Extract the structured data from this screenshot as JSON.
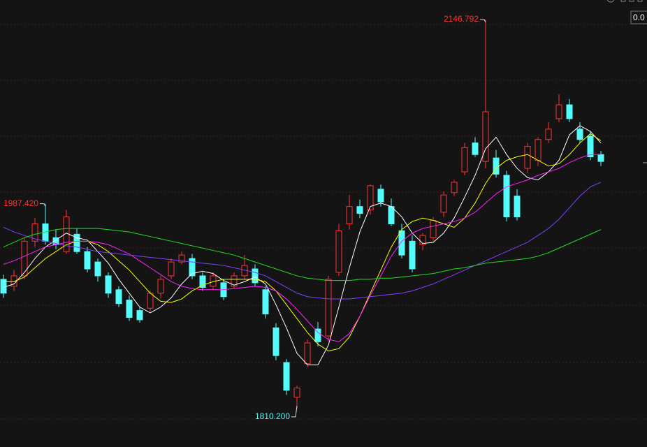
{
  "chart_data": {
    "type": "candlestick",
    "ylim": [
      1776.9,
      2163.7
    ],
    "up_color": "#ff3232",
    "down_color": "#54fcfc",
    "corner_label": "0.0",
    "candles": [
      [
        1922,
        1926,
        1906,
        1910
      ],
      [
        1916,
        1930,
        1912,
        1925
      ],
      [
        1925,
        1958,
        1922,
        1955
      ],
      [
        1955,
        1975,
        1950,
        1970
      ],
      [
        1970,
        1987.42,
        1952,
        1955
      ],
      [
        1958,
        1965,
        1948,
        1952
      ],
      [
        1946,
        1982,
        1944,
        1976
      ],
      [
        1961,
        1966,
        1944,
        1946
      ],
      [
        1946,
        1950,
        1928,
        1931
      ],
      [
        1937,
        1940,
        1920,
        1925
      ],
      [
        1925,
        1928,
        1906,
        1910
      ],
      [
        1913,
        1916,
        1898,
        1901
      ],
      [
        1904,
        1908,
        1886,
        1889
      ],
      [
        1895,
        1898,
        1884.5,
        1887
      ],
      [
        1897,
        1912,
        1894,
        1910
      ],
      [
        1910,
        1925,
        1906,
        1922
      ],
      [
        1925,
        1940,
        1922,
        1937
      ],
      [
        1937,
        1946,
        1935,
        1943
      ],
      [
        1940,
        1944,
        1922,
        1925
      ],
      [
        1925,
        1928,
        1912,
        1915
      ],
      [
        1916,
        1928,
        1913,
        1925
      ],
      [
        1919,
        1922,
        1904,
        1907
      ],
      [
        1916,
        1928,
        1914,
        1925
      ],
      [
        1925,
        1943,
        1922,
        1934
      ],
      [
        1931,
        1935,
        1916,
        1919
      ],
      [
        1913,
        1916,
        1888,
        1892
      ],
      [
        1880,
        1884,
        1852,
        1856
      ],
      [
        1850,
        1853,
        1822,
        1826
      ],
      [
        1820,
        1830,
        1810.2,
        1828
      ],
      [
        1849,
        1870,
        1846,
        1867
      ],
      [
        1879,
        1885,
        1864,
        1868
      ],
      [
        1873,
        1925,
        1868,
        1922
      ],
      [
        1928,
        1970,
        1925,
        1964
      ],
      [
        1970,
        1995,
        1965,
        1985
      ],
      [
        1985,
        1991,
        1975,
        1979
      ],
      [
        1982,
        2004,
        1978,
        2003
      ],
      [
        2000,
        2004,
        1985,
        1989
      ],
      [
        1985,
        1992,
        1968,
        1970
      ],
      [
        1964,
        1970,
        1940,
        1943
      ],
      [
        1955,
        1960,
        1928,
        1931
      ],
      [
        1952,
        1962,
        1947,
        1960
      ],
      [
        1958,
        1976,
        1955,
        1973
      ],
      [
        1980,
        1998,
        1976,
        1995
      ],
      [
        1997,
        2008,
        1994,
        2006
      ],
      [
        2015,
        2040,
        2012,
        2036
      ],
      [
        2040,
        2045,
        2028,
        2030
      ],
      [
        2024,
        2146.792,
        2018,
        2067
      ],
      [
        2027,
        2034,
        2010,
        2013
      ],
      [
        2012,
        2016,
        1972,
        1976
      ],
      [
        1994,
        2000,
        1973,
        1976
      ],
      [
        2018,
        2040,
        2014,
        2037
      ],
      [
        2025,
        2045,
        2020,
        2043
      ],
      [
        2043,
        2058,
        2040,
        2052
      ],
      [
        2061,
        2082,
        2058,
        2073
      ],
      [
        2073,
        2078,
        2058,
        2061
      ],
      [
        2052,
        2058,
        2040,
        2043
      ],
      [
        2046,
        2050,
        2025,
        2028
      ],
      [
        2030,
        2033,
        2020,
        2024
      ]
    ],
    "series": [
      {
        "color": "#ffffff",
        "values": [
          1915,
          1918,
          1928,
          1940,
          1950,
          1956,
          1962,
          1958,
          1956,
          1946,
          1936,
          1922,
          1910,
          1898,
          1893,
          1898,
          1906,
          1918,
          1927,
          1929,
          1927,
          1921,
          1917,
          1920,
          1924,
          1918,
          1900,
          1880,
          1858,
          1848,
          1848,
          1865,
          1898,
          1932,
          1963,
          1985,
          1988,
          1985,
          1976,
          1962,
          1953,
          1954,
          1962,
          1975,
          1993,
          2012,
          2035,
          2045,
          2030,
          2018,
          2010,
          2008,
          2015,
          2025,
          2047,
          2055,
          2050,
          2040
        ]
      },
      {
        "color": "#ffff00",
        "values": [
          1920,
          1920,
          1924,
          1932,
          1940,
          1946,
          1952,
          1955,
          1955,
          1952,
          1946,
          1938,
          1930,
          1920,
          1910,
          1903,
          1902,
          1905,
          1912,
          1917,
          1920,
          1922,
          1922,
          1922,
          1922,
          1920,
          1912,
          1900,
          1888,
          1876,
          1866,
          1860,
          1862,
          1872,
          1890,
          1910,
          1930,
          1950,
          1965,
          1972,
          1975,
          1973,
          1970,
          1967,
          1975,
          1988,
          2005,
          2018,
          2025,
          2028,
          2030,
          2025,
          2020,
          2022,
          2030,
          2040,
          2048,
          2042
        ]
      },
      {
        "color": "#ff22ff",
        "values": [
          1935,
          1938,
          1942,
          1946,
          1950,
          1952,
          1954,
          1955,
          1955,
          1954,
          1952,
          1948,
          1944,
          1938,
          1932,
          1926,
          1920,
          1916,
          1914,
          1913,
          1913,
          1913,
          1914,
          1915,
          1916,
          1915,
          1912,
          1905,
          1896,
          1886,
          1876,
          1870,
          1868,
          1875,
          1890,
          1908,
          1925,
          1942,
          1955,
          1962,
          1966,
          1968,
          1970,
          1972,
          1975,
          1980,
          1988,
          1996,
          2002,
          2005,
          2008,
          2012,
          2015,
          2018,
          2023,
          2027,
          2030,
          2030
        ]
      },
      {
        "color": "#8040ff",
        "values": [
          1967,
          1963,
          1960,
          1957,
          1955,
          1953,
          1951,
          1950,
          1948,
          1946,
          1945,
          1944,
          1943,
          1942,
          1941,
          1940,
          1939,
          1938,
          1937,
          1936,
          1935,
          1934,
          1932,
          1930,
          1928,
          1925,
          1920,
          1915,
          1910,
          1907,
          1906,
          1905,
          1905,
          1905,
          1906,
          1907,
          1908,
          1909,
          1910,
          1912,
          1915,
          1918,
          1922,
          1926,
          1930,
          1934,
          1938,
          1942,
          1946,
          1950,
          1954,
          1960,
          1966,
          1974,
          1984,
          1994,
          2002,
          2006
        ]
      },
      {
        "color": "#22dd22",
        "values": [
          1950,
          1954,
          1958,
          1961,
          1963,
          1965,
          1966,
          1966,
          1966,
          1966,
          1965,
          1964,
          1963,
          1961,
          1959,
          1957,
          1955,
          1953,
          1951,
          1949,
          1947,
          1945,
          1943,
          1940,
          1937,
          1934,
          1931,
          1928,
          1925,
          1923,
          1922,
          1921,
          1921,
          1921,
          1922,
          1922,
          1923,
          1923,
          1924,
          1925,
          1926,
          1927,
          1929,
          1931,
          1932,
          1934,
          1936,
          1937,
          1938,
          1939,
          1940,
          1942,
          1945,
          1949,
          1953,
          1957,
          1961,
          1965
        ]
      }
    ],
    "annotations": [
      {
        "value": 2146.792,
        "label": "2146.792",
        "color": "#ff3232"
      },
      {
        "value": 1987.42,
        "label": "1987.420",
        "color": "#ff3232"
      },
      {
        "value": 1810.2,
        "label": "1810.200",
        "color": "#54fcfc"
      }
    ]
  }
}
